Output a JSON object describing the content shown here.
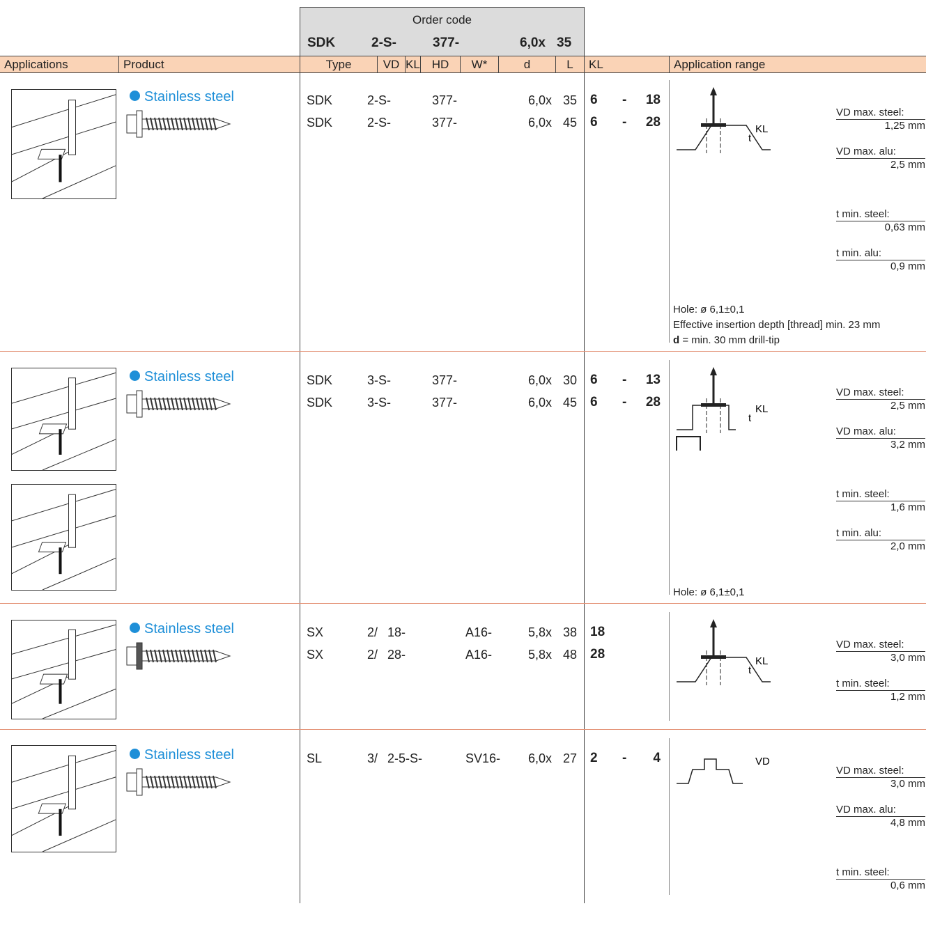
{
  "header": {
    "order_code_title": "Order code",
    "order_code": [
      "SDK",
      "2-S-",
      "377-",
      "6,0x",
      "35"
    ],
    "columns": [
      "Applications",
      "Product",
      "Type",
      "VD",
      "KL",
      "HD",
      "W*",
      "d",
      "L",
      "KL",
      "Application range"
    ]
  },
  "rows": [
    {
      "product": "Stainless steel",
      "codes": [
        {
          "type": "SDK",
          "vd": "2-S-",
          "hd": "377-",
          "d": "6,0x",
          "l": "35",
          "kl_min": "6",
          "kl_sep": "-",
          "kl_max": "18"
        },
        {
          "type": "SDK",
          "vd": "2-S-",
          "hd": "377-",
          "d": "6,0x",
          "l": "45",
          "kl_min": "6",
          "kl_sep": "-",
          "kl_max": "28"
        }
      ],
      "diagram_labels": [
        "KL",
        "t"
      ],
      "spec_groups": [
        [
          {
            "label": "VD max. steel:",
            "value": "1,25 mm"
          },
          {
            "label": "VD max. alu:",
            "value": "2,5 mm"
          }
        ],
        [
          {
            "label": "t min. steel:",
            "value": "0,63 mm"
          },
          {
            "label": "t min. alu:",
            "value": "0,9 mm"
          }
        ]
      ],
      "notes": [
        "Hole: ø 6,1±0,1",
        "Effective insertion depth [thread] min. 23 mm",
        {
          "bold": "d",
          "text": " = min. 30 mm drill-tip"
        }
      ]
    },
    {
      "product": "Stainless steel",
      "codes": [
        {
          "type": "SDK",
          "vd": "3-S-",
          "hd": "377-",
          "d": "6,0x",
          "l": "30",
          "kl_min": "6",
          "kl_sep": "-",
          "kl_max": "13"
        },
        {
          "type": "SDK",
          "vd": "3-S-",
          "hd": "377-",
          "d": "6,0x",
          "l": "45",
          "kl_min": "6",
          "kl_sep": "-",
          "kl_max": "28"
        }
      ],
      "diagram_labels": [
        "KL",
        "t"
      ],
      "spec_groups": [
        [
          {
            "label": "VD max. steel:",
            "value": "2,5 mm"
          },
          {
            "label": "VD max. alu:",
            "value": "3,2 mm"
          }
        ],
        [
          {
            "label": "t min. steel:",
            "value": "1,6 mm"
          },
          {
            "label": "t min. alu:",
            "value": "2,0 mm"
          }
        ]
      ],
      "notes": [
        "Hole: ø 6,1±0,1"
      ]
    },
    {
      "product": "Stainless steel",
      "codes": [
        {
          "type": "SX",
          "vd": "2/",
          "kl": "18-",
          "w": "A16-",
          "d": "5,8x",
          "l": "38",
          "kl_min": "18"
        },
        {
          "type": "SX",
          "vd": "2/",
          "kl": "28-",
          "w": "A16-",
          "d": "5,8x",
          "l": "48",
          "kl_min": "28"
        }
      ],
      "diagram_labels": [
        "KL",
        "t"
      ],
      "spec_groups": [
        [
          {
            "label": "VD max. steel:",
            "value": "3,0 mm"
          },
          {
            "label": "t min. steel:",
            "value": "1,2 mm"
          }
        ]
      ],
      "notes": []
    },
    {
      "product": "Stainless steel",
      "codes": [
        {
          "type": "SL",
          "vd": "3/",
          "kl": "2-5-S-",
          "w": "SV16-",
          "d": "6,0x",
          "l": "27",
          "kl_min": "2",
          "kl_sep": "-",
          "kl_max": "4"
        }
      ],
      "diagram_labels": [
        "VD"
      ],
      "spec_groups": [
        [
          {
            "label": "VD max. steel:",
            "value": "3,0 mm"
          },
          {
            "label": "VD max. alu:",
            "value": "4,8 mm"
          }
        ],
        [
          {
            "label": "t min. steel:",
            "value": "0,6 mm"
          }
        ]
      ],
      "notes": []
    }
  ]
}
